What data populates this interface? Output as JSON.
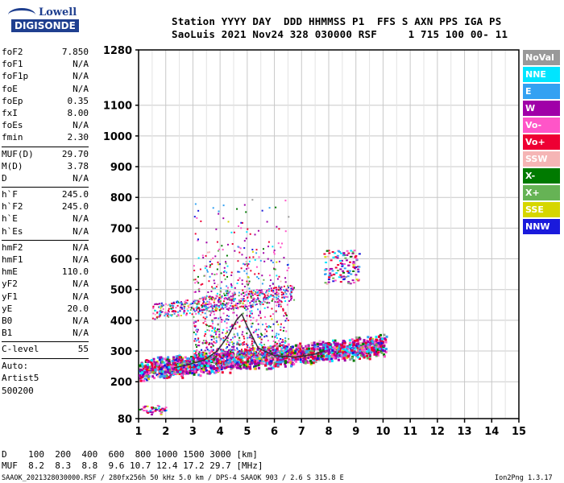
{
  "logo": {
    "line1": "Lowell",
    "line2": "DIGISONDE"
  },
  "header": {
    "line1": "Station YYYY DAY  DDD HHMMSS P1  FFS S AXN PPS IGA PS",
    "line2": "SaoLuis 2021 Nov24 328 030000 RSF     1 715 100 00- 11"
  },
  "params": {
    "group1": [
      {
        "label": "foF2",
        "value": "7.850"
      },
      {
        "label": "foF1",
        "value": "N/A"
      },
      {
        "label": "foF1p",
        "value": "N/A"
      },
      {
        "label": "foE",
        "value": "N/A"
      },
      {
        "label": "foEp",
        "value": "0.35"
      },
      {
        "label": "fxI",
        "value": "8.00"
      },
      {
        "label": "foEs",
        "value": "N/A"
      },
      {
        "label": "fmin",
        "value": "2.30"
      }
    ],
    "group2": [
      {
        "label": "MUF(D)",
        "value": "29.70"
      },
      {
        "label": "M(D)",
        "value": "3.78"
      },
      {
        "label": "D",
        "value": "N/A"
      }
    ],
    "group3": [
      {
        "label": "h`F",
        "value": "245.0"
      },
      {
        "label": "h`F2",
        "value": "245.0"
      },
      {
        "label": "h`E",
        "value": "N/A"
      },
      {
        "label": "h`Es",
        "value": "N/A"
      }
    ],
    "group4": [
      {
        "label": "hmF2",
        "value": "N/A"
      },
      {
        "label": "hmF1",
        "value": "N/A"
      },
      {
        "label": "hmE",
        "value": "110.0"
      },
      {
        "label": "yF2",
        "value": "N/A"
      },
      {
        "label": "yF1",
        "value": "N/A"
      },
      {
        "label": "yE",
        "value": "20.0"
      },
      {
        "label": "B0",
        "value": "N/A"
      },
      {
        "label": "B1",
        "value": "N/A"
      }
    ],
    "group5": [
      {
        "label": "C-level",
        "value": "55"
      }
    ],
    "auto": [
      "Auto:",
      "Artist5",
      "500200"
    ]
  },
  "legend": [
    {
      "label": "NoVal",
      "color": "#999999"
    },
    {
      "label": "NNE",
      "color": "#00e5ff"
    },
    {
      "label": "E",
      "color": "#33a1f2"
    },
    {
      "label": "W",
      "color": "#a000a8"
    },
    {
      "label": "Vo-",
      "color": "#ff55c8"
    },
    {
      "label": "Vo+",
      "color": "#ee0033"
    },
    {
      "label": "SSW",
      "color": "#f5b5b5"
    },
    {
      "label": "X-",
      "color": "#007a00"
    },
    {
      "label": "X+",
      "color": "#66b355"
    },
    {
      "label": "SSE",
      "color": "#d6d600"
    },
    {
      "label": "NNW",
      "color": "#1a1adc"
    }
  ],
  "bottom": {
    "d_row": "D    100  200  400  600  800 1000 1500 3000 [km]",
    "muf_row": "MUF  8.2  8.3  8.8  9.6 10.7 12.4 17.2 29.7 [MHz]"
  },
  "footer": {
    "left": "SAAOK_2021328030000.RSF / 280fx256h 50 kHz 5.0 km / DPS-4 SAAOK 903 / 2.6 S 315.8 E",
    "right": "Ion2Png 1.3.17"
  },
  "chart_data": {
    "type": "scatter",
    "title": "",
    "xlabel": "",
    "ylabel": "",
    "xlim": [
      1,
      15
    ],
    "ylim": [
      80,
      1280
    ],
    "x_ticks": [
      1,
      2,
      3,
      4,
      5,
      6,
      7,
      8,
      9,
      10,
      11,
      12,
      13,
      14,
      15
    ],
    "y_ticks": [
      80,
      200,
      300,
      400,
      500,
      600,
      700,
      800,
      900,
      1000,
      1100,
      1280
    ],
    "grid": true,
    "trace_x": [
      2.3,
      2.8,
      3.4,
      3.9,
      4.3,
      4.6,
      4.8,
      5.0,
      5.4,
      6.0,
      6.8,
      7.5,
      7.85
    ],
    "trace_y": [
      245,
      255,
      270,
      300,
      350,
      400,
      420,
      380,
      310,
      285,
      280,
      290,
      300
    ]
  }
}
